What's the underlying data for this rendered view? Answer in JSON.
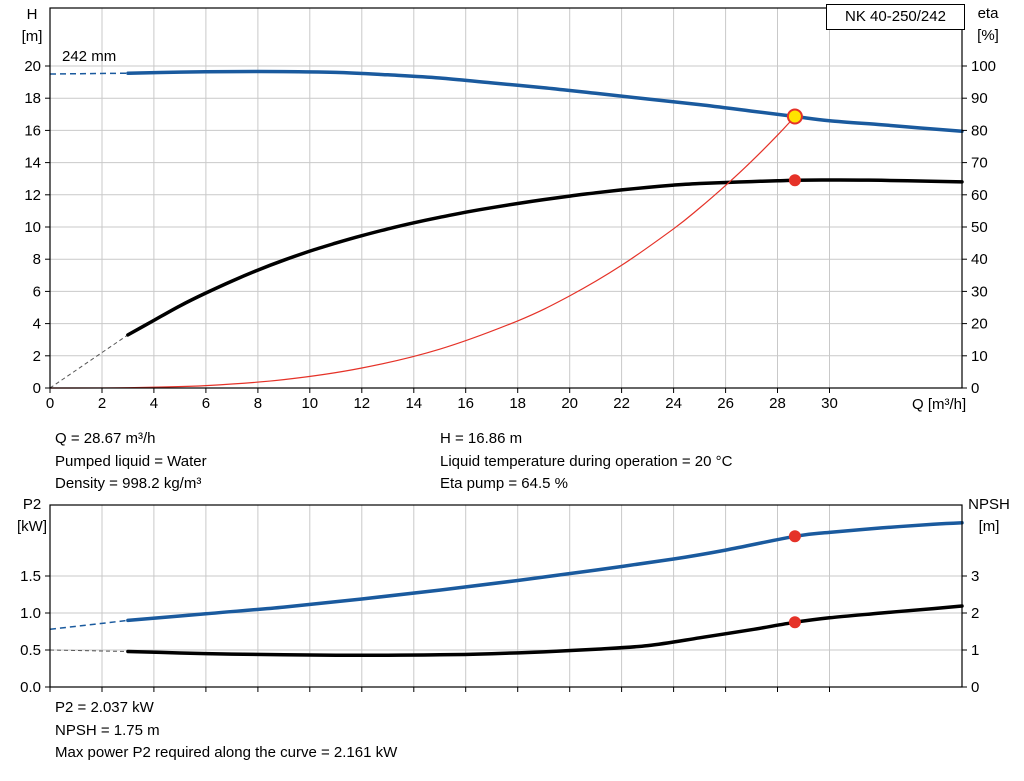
{
  "title_box": "NK 40-250/242",
  "colors": {
    "curve_blue": "#1a5a9e",
    "curve_black": "#000000",
    "curve_red": "#e53228",
    "duty_yellow": "#ffe400",
    "grid": "#c9c9c9",
    "frame": "#000000",
    "text": "#000000"
  },
  "chart_data": [
    {
      "name": "qh-eta-chart",
      "type": "line",
      "x_axis": {
        "label": "Q [m³/h]",
        "min": 0,
        "max": 35.1,
        "ticks": [
          0,
          2,
          4,
          6,
          8,
          10,
          12,
          14,
          16,
          18,
          20,
          22,
          24,
          26,
          28,
          30
        ],
        "tick_labels": [
          "0",
          "2",
          "4",
          "6",
          "8",
          "10",
          "12",
          "14",
          "16",
          "18",
          "20",
          "22",
          "24",
          "26",
          "28",
          "30"
        ],
        "show_tick_labels": true
      },
      "left_axis": {
        "title": "H",
        "unit": "[m]",
        "min": 0,
        "max": 23.6,
        "ticks": [
          0,
          2,
          4,
          6,
          8,
          10,
          12,
          14,
          16,
          18,
          20
        ],
        "tick_labels": [
          "0",
          "2",
          "4",
          "6",
          "8",
          "10",
          "12",
          "14",
          "16",
          "18",
          "20"
        ]
      },
      "right_axis": {
        "title": "eta",
        "unit": "[%]",
        "min": 0,
        "max": 118,
        "ticks": [
          0,
          10,
          20,
          30,
          40,
          50,
          60,
          70,
          80,
          90,
          100
        ],
        "tick_labels": [
          "0",
          "10",
          "20",
          "30",
          "40",
          "50",
          "60",
          "70",
          "80",
          "90",
          "100"
        ]
      },
      "annotation": "242 mm",
      "grid": true,
      "legend": "none",
      "series": [
        {
          "name": "head-curve",
          "axis": "left",
          "color": "#1a5a9e",
          "width": 3.5,
          "dash": {
            "points": [
              [
                0,
                19.5
              ],
              [
                3,
                19.55
              ]
            ],
            "width": 1.5,
            "color": "#1a5a9e",
            "pattern": "6 4"
          },
          "points": [
            [
              3,
              19.55
            ],
            [
              5,
              19.62
            ],
            [
              7,
              19.65
            ],
            [
              9,
              19.65
            ],
            [
              11,
              19.6
            ],
            [
              13,
              19.45
            ],
            [
              15,
              19.25
            ],
            [
              17,
              18.95
            ],
            [
              19,
              18.65
            ],
            [
              21,
              18.3
            ],
            [
              23,
              17.95
            ],
            [
              25,
              17.6
            ],
            [
              27,
              17.2
            ],
            [
              28.67,
              16.86
            ],
            [
              30,
              16.6
            ],
            [
              32,
              16.35
            ],
            [
              33.5,
              16.15
            ],
            [
              35.1,
              15.95
            ]
          ]
        },
        {
          "name": "efficiency-curve",
          "axis": "right",
          "color": "#000000",
          "width": 3.5,
          "dash": {
            "points": [
              [
                0,
                0
              ],
              [
                3,
                16.5
              ]
            ],
            "width": 1,
            "color": "#555555",
            "pattern": "4 3"
          },
          "points": [
            [
              3,
              16.5
            ],
            [
              4,
              21
            ],
            [
              5,
              25.5
            ],
            [
              6,
              29.5
            ],
            [
              7,
              33.2
            ],
            [
              8,
              36.6
            ],
            [
              9,
              39.7
            ],
            [
              10,
              42.5
            ],
            [
              11,
              45
            ],
            [
              12,
              47.3
            ],
            [
              13,
              49.4
            ],
            [
              14,
              51.3
            ],
            [
              15,
              53
            ],
            [
              16,
              54.6
            ],
            [
              17,
              56
            ],
            [
              18,
              57.3
            ],
            [
              19,
              58.5
            ],
            [
              20,
              59.6
            ],
            [
              21,
              60.6
            ],
            [
              22,
              61.5
            ],
            [
              23,
              62.3
            ],
            [
              24,
              63
            ],
            [
              25,
              63.5
            ],
            [
              26,
              63.8
            ],
            [
              27,
              64.1
            ],
            [
              28,
              64.35
            ],
            [
              28.67,
              64.5
            ],
            [
              30,
              64.6
            ],
            [
              31.5,
              64.55
            ],
            [
              33,
              64.35
            ],
            [
              35.1,
              64
            ]
          ]
        },
        {
          "name": "duty-parabola",
          "axis": "left",
          "color": "#e53228",
          "width": 1.2,
          "points": [
            [
              0,
              0
            ],
            [
              3,
              0.02
            ],
            [
              6,
              0.15
            ],
            [
              9,
              0.52
            ],
            [
              12,
              1.24
            ],
            [
              15,
              2.41
            ],
            [
              18,
              4.17
            ],
            [
              20,
              5.72
            ],
            [
              22,
              7.62
            ],
            [
              24,
              9.89
            ],
            [
              25,
              11.18
            ],
            [
              26,
              12.58
            ],
            [
              27,
              14.08
            ],
            [
              28,
              15.7
            ],
            [
              28.67,
              16.86
            ]
          ]
        }
      ],
      "markers": [
        {
          "name": "duty-point",
          "axis": "left",
          "x": 28.67,
          "y": 16.86,
          "r": 7,
          "fill": "#ffe400",
          "stroke": "#e53228",
          "stroke_width": 2
        },
        {
          "name": "eta-duty-point",
          "axis": "right",
          "x": 28.67,
          "y": 64.5,
          "r": 5.5,
          "fill": "#e53228",
          "stroke": "#e53228",
          "stroke_width": 1
        }
      ]
    },
    {
      "name": "p2-npsh-chart",
      "type": "line",
      "x_axis": {
        "label": "",
        "min": 0,
        "max": 35.1,
        "ticks": [
          0,
          2,
          4,
          6,
          8,
          10,
          12,
          14,
          16,
          18,
          20,
          22,
          24,
          26,
          28,
          30
        ],
        "tick_labels": [
          "0",
          "2",
          "4",
          "6",
          "8",
          "10",
          "12",
          "14",
          "16",
          "18",
          "20",
          "22",
          "24",
          "26",
          "28",
          "30"
        ],
        "show_tick_labels": false
      },
      "left_axis": {
        "title": "P2",
        "unit": "[kW]",
        "min": 0,
        "max": 2.46,
        "ticks": [
          0,
          0.5,
          1,
          1.5
        ],
        "tick_labels": [
          "0.0",
          "0.5",
          "1.0",
          "1.5"
        ]
      },
      "right_axis": {
        "title": "NPSH",
        "unit": "[m]",
        "min": 0,
        "max": 4.92,
        "ticks": [
          0,
          1,
          2,
          3
        ],
        "tick_labels": [
          "0",
          "1",
          "2",
          "3"
        ]
      },
      "annotation": "",
      "grid": true,
      "legend": "none",
      "series": [
        {
          "name": "p2-curve",
          "axis": "left",
          "color": "#1a5a9e",
          "width": 3.5,
          "dash": {
            "points": [
              [
                0,
                0.78
              ],
              [
                3,
                0.9
              ]
            ],
            "width": 1.5,
            "color": "#1a5a9e",
            "pattern": "6 4"
          },
          "points": [
            [
              3,
              0.9
            ],
            [
              6,
              0.99
            ],
            [
              9,
              1.08
            ],
            [
              12,
              1.19
            ],
            [
              15,
              1.31
            ],
            [
              18,
              1.44
            ],
            [
              21,
              1.58
            ],
            [
              24,
              1.73
            ],
            [
              26,
              1.85
            ],
            [
              28.67,
              2.037
            ],
            [
              30,
              2.09
            ],
            [
              32,
              2.15
            ],
            [
              34,
              2.2
            ],
            [
              35.1,
              2.22
            ]
          ]
        },
        {
          "name": "npsh-curve",
          "axis": "right",
          "color": "#000000",
          "width": 3.5,
          "dash": {
            "points": [
              [
                0,
                1.0
              ],
              [
                3,
                0.96
              ]
            ],
            "width": 1,
            "color": "#555555",
            "pattern": "4 3"
          },
          "points": [
            [
              3,
              0.96
            ],
            [
              5,
              0.92
            ],
            [
              7,
              0.89
            ],
            [
              9,
              0.87
            ],
            [
              11,
              0.86
            ],
            [
              13,
              0.86
            ],
            [
              15,
              0.87
            ],
            [
              17,
              0.9
            ],
            [
              19,
              0.95
            ],
            [
              21,
              1.02
            ],
            [
              23,
              1.12
            ],
            [
              25,
              1.33
            ],
            [
              27,
              1.55
            ],
            [
              28.67,
              1.75
            ],
            [
              30,
              1.87
            ],
            [
              32,
              2.0
            ],
            [
              34,
              2.12
            ],
            [
              35.1,
              2.19
            ]
          ]
        }
      ],
      "markers": [
        {
          "name": "p2-duty-point",
          "axis": "left",
          "x": 28.67,
          "y": 2.037,
          "r": 5.5,
          "fill": "#e53228",
          "stroke": "#e53228",
          "stroke_width": 1
        },
        {
          "name": "npsh-duty-point",
          "axis": "right",
          "x": 28.67,
          "y": 1.75,
          "r": 5.5,
          "fill": "#e53228",
          "stroke": "#e53228",
          "stroke_width": 1
        }
      ]
    }
  ],
  "operating_point": {
    "flow": "Q = 28.67 m³/h",
    "pumped_liquid": "Pumped liquid = Water",
    "density": "Density = 998.2 kg/m³",
    "head": "H = 16.86 m",
    "temperature": "Liquid temperature during operation = 20 °C",
    "eta_pump": "Eta pump = 64.5 %",
    "p2": "P2 = 2.037 kW",
    "npsh": "NPSH = 1.75 m",
    "max_power": "Max power P2 required along the curve = 2.161 kW"
  }
}
